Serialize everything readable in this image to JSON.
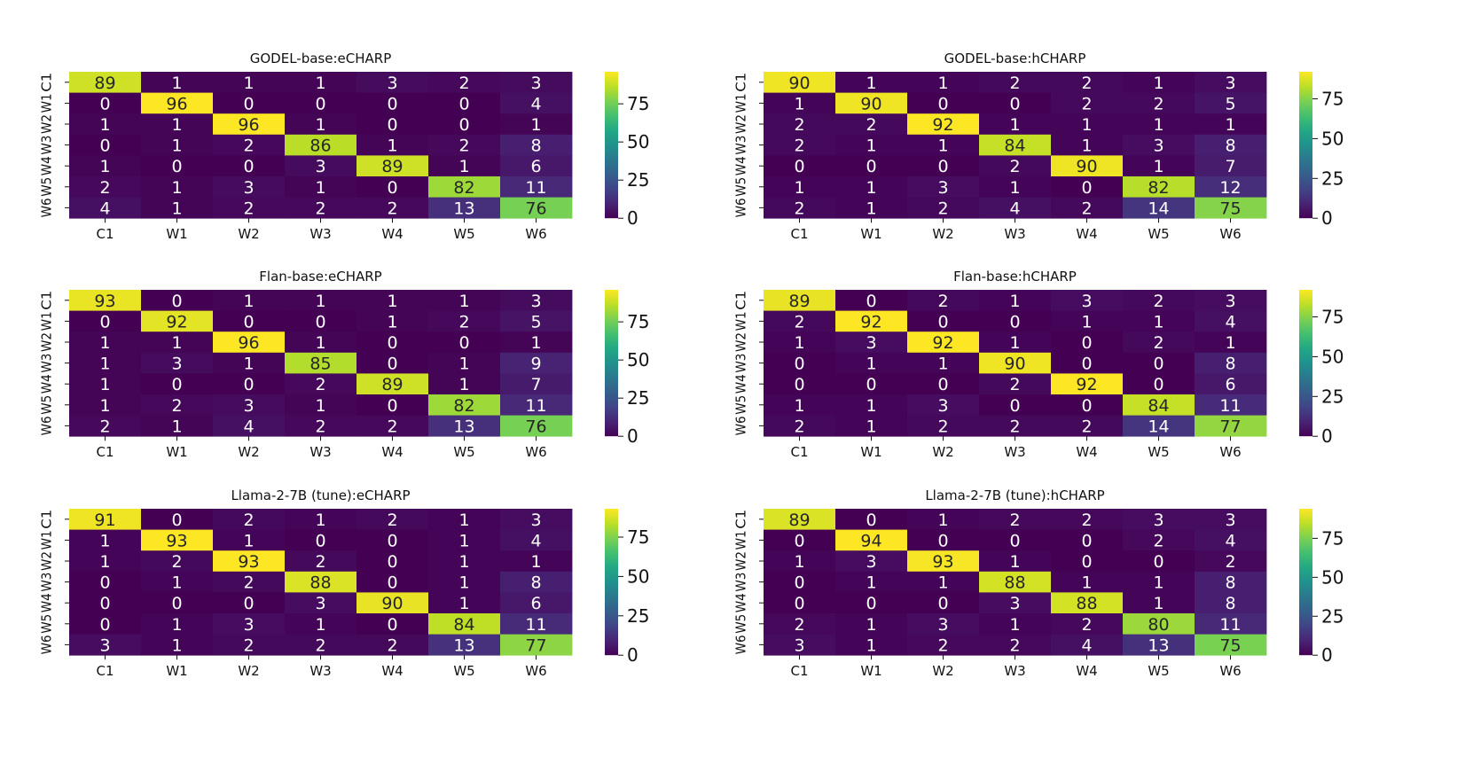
{
  "chart_data": [
    {
      "type": "heatmap",
      "title": "GODEL-base:eCHARP",
      "x_categories": [
        "C1",
        "W1",
        "W2",
        "W3",
        "W4",
        "W5",
        "W6"
      ],
      "y_categories": [
        "C1",
        "W1",
        "W2",
        "W3",
        "W4",
        "W5",
        "W6"
      ],
      "values": [
        [
          89,
          1,
          1,
          1,
          3,
          2,
          3
        ],
        [
          0,
          96,
          0,
          0,
          0,
          0,
          4
        ],
        [
          1,
          1,
          96,
          1,
          0,
          0,
          1
        ],
        [
          0,
          1,
          2,
          86,
          1,
          2,
          8
        ],
        [
          1,
          0,
          0,
          3,
          89,
          1,
          6
        ],
        [
          2,
          1,
          3,
          1,
          0,
          82,
          11
        ],
        [
          4,
          1,
          2,
          2,
          2,
          13,
          76
        ]
      ],
      "colorbar_ticks": [
        0,
        25,
        50,
        75
      ],
      "colormap": "viridis",
      "vmin": 0,
      "vmax": 96
    },
    {
      "type": "heatmap",
      "title": "GODEL-base:hCHARP",
      "x_categories": [
        "C1",
        "W1",
        "W2",
        "W3",
        "W4",
        "W5",
        "W6"
      ],
      "y_categories": [
        "C1",
        "W1",
        "W2",
        "W3",
        "W4",
        "W5",
        "W6"
      ],
      "values": [
        [
          90,
          1,
          1,
          2,
          2,
          1,
          3
        ],
        [
          1,
          90,
          0,
          0,
          2,
          2,
          5
        ],
        [
          2,
          2,
          92,
          1,
          1,
          1,
          1
        ],
        [
          2,
          1,
          1,
          84,
          1,
          3,
          8
        ],
        [
          0,
          0,
          0,
          2,
          90,
          1,
          7
        ],
        [
          1,
          1,
          3,
          1,
          0,
          82,
          12
        ],
        [
          2,
          1,
          2,
          4,
          2,
          14,
          75
        ]
      ],
      "colorbar_ticks": [
        0,
        25,
        50,
        75
      ],
      "colormap": "viridis",
      "vmin": 0,
      "vmax": 92
    },
    {
      "type": "heatmap",
      "title": "Flan-base:eCHARP",
      "x_categories": [
        "C1",
        "W1",
        "W2",
        "W3",
        "W4",
        "W5",
        "W6"
      ],
      "y_categories": [
        "C1",
        "W1",
        "W2",
        "W3",
        "W4",
        "W5",
        "W6"
      ],
      "values": [
        [
          93,
          0,
          1,
          1,
          1,
          1,
          3
        ],
        [
          0,
          92,
          0,
          0,
          1,
          2,
          5
        ],
        [
          1,
          1,
          96,
          1,
          0,
          0,
          1
        ],
        [
          1,
          3,
          1,
          85,
          0,
          1,
          9
        ],
        [
          1,
          0,
          0,
          2,
          89,
          1,
          7
        ],
        [
          1,
          2,
          3,
          1,
          0,
          82,
          11
        ],
        [
          2,
          1,
          4,
          2,
          2,
          13,
          76
        ]
      ],
      "colorbar_ticks": [
        0,
        25,
        50,
        75
      ],
      "colormap": "viridis",
      "vmin": 0,
      "vmax": 96
    },
    {
      "type": "heatmap",
      "title": "Flan-base:hCHARP",
      "x_categories": [
        "C1",
        "W1",
        "W2",
        "W3",
        "W4",
        "W5",
        "W6"
      ],
      "y_categories": [
        "C1",
        "W1",
        "W2",
        "W3",
        "W4",
        "W5",
        "W6"
      ],
      "values": [
        [
          89,
          0,
          2,
          1,
          3,
          2,
          3
        ],
        [
          2,
          92,
          0,
          0,
          1,
          1,
          4
        ],
        [
          1,
          3,
          92,
          1,
          0,
          2,
          1
        ],
        [
          0,
          1,
          1,
          90,
          0,
          0,
          8
        ],
        [
          0,
          0,
          0,
          2,
          92,
          0,
          6
        ],
        [
          1,
          1,
          3,
          0,
          0,
          84,
          11
        ],
        [
          2,
          1,
          2,
          2,
          2,
          14,
          77
        ]
      ],
      "colorbar_ticks": [
        0,
        25,
        50,
        75
      ],
      "colormap": "viridis",
      "vmin": 0,
      "vmax": 92
    },
    {
      "type": "heatmap",
      "title": "Llama-2-7B (tune):eCHARP",
      "x_categories": [
        "C1",
        "W1",
        "W2",
        "W3",
        "W4",
        "W5",
        "W6"
      ],
      "y_categories": [
        "C1",
        "W1",
        "W2",
        "W3",
        "W4",
        "W5",
        "W6"
      ],
      "values": [
        [
          91,
          0,
          2,
          1,
          2,
          1,
          3
        ],
        [
          1,
          93,
          1,
          0,
          0,
          1,
          4
        ],
        [
          1,
          2,
          93,
          2,
          0,
          1,
          1
        ],
        [
          0,
          1,
          2,
          88,
          0,
          1,
          8
        ],
        [
          0,
          0,
          0,
          3,
          90,
          1,
          6
        ],
        [
          0,
          1,
          3,
          1,
          0,
          84,
          11
        ],
        [
          3,
          1,
          2,
          2,
          2,
          13,
          77
        ]
      ],
      "colorbar_ticks": [
        0,
        25,
        50,
        75
      ],
      "colormap": "viridis",
      "vmin": 0,
      "vmax": 93
    },
    {
      "type": "heatmap",
      "title": "Llama-2-7B (tune):hCHARP",
      "x_categories": [
        "C1",
        "W1",
        "W2",
        "W3",
        "W4",
        "W5",
        "W6"
      ],
      "y_categories": [
        "C1",
        "W1",
        "W2",
        "W3",
        "W4",
        "W5",
        "W6"
      ],
      "values": [
        [
          89,
          0,
          1,
          2,
          2,
          3,
          3
        ],
        [
          0,
          94,
          0,
          0,
          0,
          2,
          4
        ],
        [
          1,
          3,
          93,
          1,
          0,
          0,
          2
        ],
        [
          0,
          1,
          1,
          88,
          1,
          1,
          8
        ],
        [
          0,
          0,
          0,
          3,
          88,
          1,
          8
        ],
        [
          2,
          1,
          3,
          1,
          2,
          80,
          11
        ],
        [
          3,
          1,
          2,
          2,
          4,
          13,
          75
        ]
      ],
      "colorbar_ticks": [
        0,
        25,
        50,
        75
      ],
      "colormap": "viridis",
      "vmin": 0,
      "vmax": 94
    }
  ]
}
